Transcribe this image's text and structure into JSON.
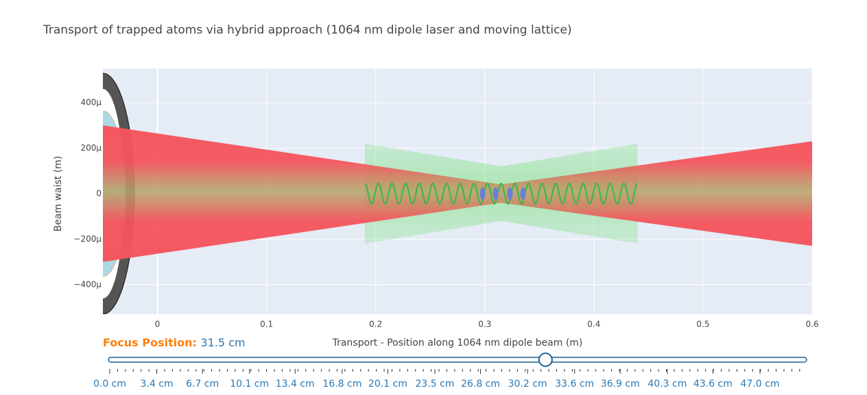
{
  "chart_data": {
    "type": "beam",
    "title": "Transport of trapped atoms via hybrid approach (1064 nm dipole laser and moving lattice)",
    "xlabel": "Transport - Position along 1064 nm dipole beam (m)",
    "ylabel": "Beam waist (m)",
    "xlim": [
      -0.05,
      0.6
    ],
    "ylim": [
      -0.00053,
      0.00055
    ],
    "xticks": [
      0,
      0.1,
      0.2,
      0.3,
      0.4,
      0.5,
      0.6
    ],
    "yticks": [
      {
        "value": -0.0004,
        "label": "−400μ"
      },
      {
        "value": -0.0002,
        "label": "−200μ"
      },
      0,
      {
        "value": 0.0002,
        "label": "200μ"
      },
      {
        "value": 0.0004,
        "label": "400μ"
      }
    ],
    "grid": true,
    "dipole_beam": {
      "color": "#f5545c",
      "x": [
        -0.05,
        0.315,
        0.6
      ],
      "half_width": [
        0.0003,
        4e-05,
        0.00023
      ]
    },
    "lattice_beam": {
      "color": "#7be07b",
      "x": [
        0.19,
        0.315,
        0.44
      ],
      "half_width": [
        0.00022,
        0.00012,
        0.00022
      ]
    },
    "lattice_wave": {
      "color": "#3cb44b",
      "x": [
        0.19,
        0.44
      ],
      "amplitude": 4.5e-05,
      "wavelength": 0.0125
    },
    "atoms": {
      "color": "#6a7fd6",
      "x": [
        0.298,
        0.31,
        0.323,
        0.335
      ],
      "y": [
        0,
        0,
        0,
        0
      ]
    },
    "slider": {
      "prefix": "Focus Position: ",
      "value": 31.5,
      "value_label": "31.5 cm",
      "ticks": [
        {
          "value": 0.0,
          "label": "0.0 cm"
        },
        {
          "value": 3.4,
          "label": "3.4 cm"
        },
        {
          "value": 6.7,
          "label": "6.7 cm"
        },
        {
          "value": 10.1,
          "label": "10.1 cm"
        },
        {
          "value": 13.4,
          "label": "13.4 cm"
        },
        {
          "value": 16.8,
          "label": "16.8 cm"
        },
        {
          "value": 20.1,
          "label": "20.1 cm"
        },
        {
          "value": 23.5,
          "label": "23.5 cm"
        },
        {
          "value": 26.8,
          "label": "26.8 cm"
        },
        {
          "value": 30.2,
          "label": "30.2 cm"
        },
        {
          "value": 33.6,
          "label": "33.6 cm"
        },
        {
          "value": 36.9,
          "label": "36.9 cm"
        },
        {
          "value": 40.3,
          "label": "40.3 cm"
        },
        {
          "value": 43.6,
          "label": "43.6 cm"
        },
        {
          "value": 47.0,
          "label": "47.0 cm"
        }
      ]
    }
  }
}
